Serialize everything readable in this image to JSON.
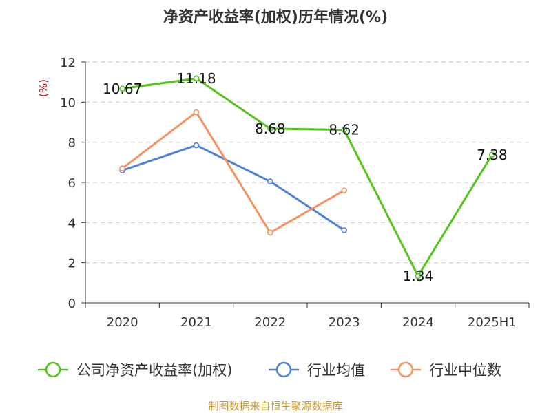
{
  "chart_data": {
    "type": "line",
    "title": "净资产收益率(加权)历年情况(%)",
    "ylabel": "(%)",
    "categories": [
      "2020",
      "2021",
      "2022",
      "2023",
      "2024",
      "2025H1"
    ],
    "ylim": [
      0,
      12
    ],
    "yticks": [
      0,
      2,
      4,
      6,
      8,
      10,
      12
    ],
    "grid": true,
    "legend_position": "bottom",
    "series": [
      {
        "name": "公司净资产收益率(加权)",
        "color": "#52c41a",
        "values": [
          10.67,
          11.18,
          8.68,
          8.62,
          1.34,
          7.38
        ],
        "labels": [
          "10.67",
          "11.18",
          "8.68",
          "8.62",
          "1.34",
          "7.38"
        ]
      },
      {
        "name": "行业均值",
        "color": "#4f7fd9",
        "values": [
          6.6,
          7.85,
          6.05,
          3.62,
          null,
          null
        ]
      },
      {
        "name": "行业中位数",
        "color": "#f59360",
        "values": [
          6.7,
          9.5,
          3.5,
          5.6,
          null,
          null
        ]
      }
    ]
  },
  "source": "制图数据来自恒生聚源数据库"
}
